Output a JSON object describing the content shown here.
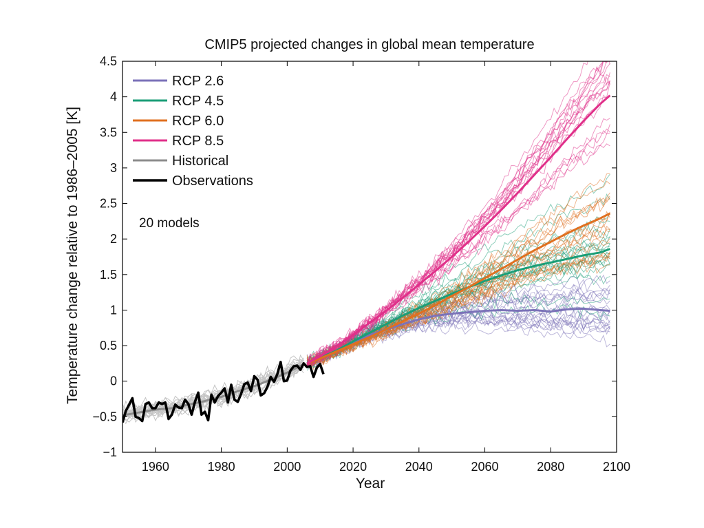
{
  "chart_data": {
    "type": "line",
    "title": "CMIP5 projected changes in global mean temperature",
    "xlabel": "Year",
    "ylabel": "Temperature change relative to 1986–2005 [K]",
    "xlim": [
      1950,
      2100
    ],
    "ylim": [
      -1,
      4.5
    ],
    "xticks": [
      1960,
      1980,
      2000,
      2020,
      2040,
      2060,
      2080,
      2100
    ],
    "yticks": [
      -1,
      -0.5,
      0,
      0.5,
      1,
      1.5,
      2,
      2.5,
      3,
      3.5,
      4,
      4.5
    ],
    "ytick_labels": [
      "−1",
      "−0.5",
      "0",
      "0.5",
      "1",
      "1.5",
      "2",
      "2.5",
      "3",
      "3.5",
      "4",
      "4.5"
    ],
    "grid": false,
    "legend_position": "top-left",
    "annotation": "20 models",
    "colors": {
      "rcp26": "#7b72b8",
      "rcp45": "#1b9e77",
      "rcp60": "#e07020",
      "rcp85": "#e0308a",
      "historical": "#8c8c8c",
      "observations": "#000000"
    },
    "series": [
      {
        "name": "RCP 2.6",
        "color_key": "rcp26",
        "x": [
          2006,
          2010,
          2015,
          2020,
          2025,
          2030,
          2035,
          2040,
          2045,
          2050,
          2055,
          2060,
          2065,
          2070,
          2075,
          2080,
          2085,
          2090,
          2095,
          2098
        ],
        "y": [
          0.25,
          0.33,
          0.43,
          0.55,
          0.65,
          0.73,
          0.8,
          0.87,
          0.92,
          0.95,
          0.97,
          0.99,
          1.0,
          0.99,
          1.0,
          0.98,
          1.01,
          1.02,
          1.0,
          0.99
        ]
      },
      {
        "name": "RCP 4.5",
        "color_key": "rcp45",
        "x": [
          2006,
          2010,
          2015,
          2020,
          2025,
          2030,
          2035,
          2040,
          2045,
          2050,
          2055,
          2060,
          2065,
          2070,
          2075,
          2080,
          2085,
          2090,
          2095,
          2098
        ],
        "y": [
          0.25,
          0.33,
          0.43,
          0.56,
          0.68,
          0.8,
          0.92,
          1.03,
          1.13,
          1.23,
          1.32,
          1.41,
          1.49,
          1.56,
          1.62,
          1.67,
          1.72,
          1.77,
          1.81,
          1.86
        ]
      },
      {
        "name": "RCP 6.0",
        "color_key": "rcp60",
        "x": [
          2006,
          2010,
          2015,
          2020,
          2025,
          2030,
          2035,
          2040,
          2045,
          2050,
          2055,
          2060,
          2065,
          2070,
          2075,
          2080,
          2085,
          2090,
          2095,
          2098
        ],
        "y": [
          0.25,
          0.32,
          0.42,
          0.52,
          0.62,
          0.73,
          0.84,
          0.95,
          1.07,
          1.2,
          1.32,
          1.45,
          1.58,
          1.71,
          1.84,
          1.96,
          2.08,
          2.19,
          2.29,
          2.36
        ]
      },
      {
        "name": "RCP 8.5",
        "color_key": "rcp85",
        "x": [
          2006,
          2010,
          2015,
          2020,
          2025,
          2030,
          2035,
          2040,
          2045,
          2050,
          2055,
          2060,
          2065,
          2070,
          2075,
          2080,
          2085,
          2090,
          2095,
          2098
        ],
        "y": [
          0.25,
          0.35,
          0.49,
          0.65,
          0.82,
          0.99,
          1.17,
          1.36,
          1.55,
          1.75,
          1.96,
          2.18,
          2.41,
          2.65,
          2.9,
          3.15,
          3.41,
          3.66,
          3.9,
          4.02
        ]
      },
      {
        "name": "Historical",
        "color_key": "historical",
        "x": [
          1950,
          1955,
          1960,
          1965,
          1970,
          1975,
          1980,
          1985,
          1990,
          1995,
          2000,
          2005
        ],
        "y": [
          -0.48,
          -0.44,
          -0.4,
          -0.38,
          -0.33,
          -0.28,
          -0.22,
          -0.14,
          -0.07,
          0.02,
          0.12,
          0.24
        ]
      },
      {
        "name": "Observations",
        "color_key": "observations",
        "x": [
          1950,
          1951,
          1952,
          1953,
          1954,
          1955,
          1956,
          1957,
          1958,
          1959,
          1960,
          1961,
          1962,
          1963,
          1964,
          1965,
          1966,
          1967,
          1968,
          1969,
          1970,
          1971,
          1972,
          1973,
          1974,
          1975,
          1976,
          1977,
          1978,
          1979,
          1980,
          1981,
          1982,
          1983,
          1984,
          1985,
          1986,
          1987,
          1988,
          1989,
          1990,
          1991,
          1992,
          1993,
          1994,
          1995,
          1996,
          1997,
          1998,
          1999,
          2000,
          2001,
          2002,
          2003,
          2004,
          2005,
          2006,
          2007,
          2008,
          2009,
          2010,
          2011
        ],
        "y": [
          -0.58,
          -0.42,
          -0.33,
          -0.24,
          -0.5,
          -0.52,
          -0.56,
          -0.32,
          -0.3,
          -0.38,
          -0.38,
          -0.3,
          -0.32,
          -0.3,
          -0.53,
          -0.47,
          -0.33,
          -0.37,
          -0.38,
          -0.26,
          -0.32,
          -0.47,
          -0.29,
          -0.16,
          -0.47,
          -0.43,
          -0.55,
          -0.19,
          -0.3,
          -0.21,
          -0.16,
          -0.1,
          -0.3,
          -0.05,
          -0.26,
          -0.29,
          -0.18,
          -0.04,
          -0.02,
          -0.14,
          0.07,
          0.02,
          -0.2,
          -0.17,
          -0.08,
          0.06,
          -0.01,
          0.1,
          0.27,
          0.0,
          0.01,
          0.15,
          0.21,
          0.22,
          0.16,
          0.25,
          0.2,
          0.21,
          0.06,
          0.19,
          0.24,
          0.1
        ]
      }
    ]
  }
}
